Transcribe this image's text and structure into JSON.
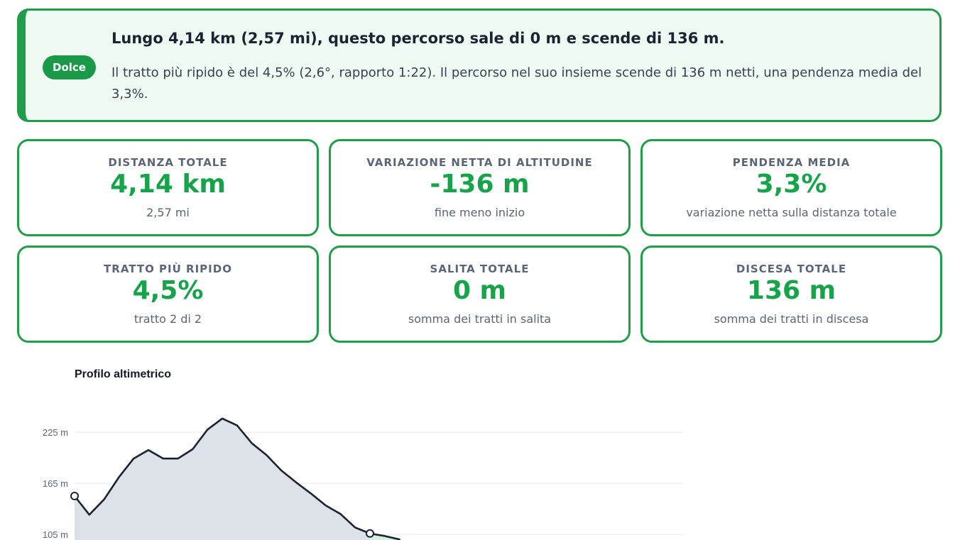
{
  "summary": {
    "badge": "Dolce",
    "title": "Lungo 4,14 km (2,57 mi), questo percorso sale di 0 m e scende di 136 m.",
    "text": "Il tratto più ripido è del 4,5% (2,6°, rapporto 1:22). Il percorso nel suo insieme scende di 136 m netti, una pendenza media del 3,3%.",
    "accent_color": "#1f9d4a",
    "background_color": "#effbf2"
  },
  "stats": [
    {
      "label": "DISTANZA TOTALE",
      "value": "4,14 km",
      "sub": "2,57 mi"
    },
    {
      "label": "VARIAZIONE NETTA DI ALTITUDINE",
      "value": "-136 m",
      "sub": "fine meno inizio"
    },
    {
      "label": "PENDENZA MEDIA",
      "value": "3,3%",
      "sub": "variazione netta sulla distanza totale"
    },
    {
      "label": "TRATTO PIÙ RIPIDO",
      "value": "4,5%",
      "sub": "tratto 2 di 2"
    },
    {
      "label": "SALITA TOTALE",
      "value": "0 m",
      "sub": "somma dei tratti in salita"
    },
    {
      "label": "DISCESA TOTALE",
      "value": "136 m",
      "sub": "somma dei tratti in discesa"
    }
  ],
  "value_color": "#17a34a",
  "chart_title": "Profilo altimetrico",
  "chart_data": {
    "type": "area",
    "title": "Profilo altimetrico",
    "xlabel": "",
    "ylabel": "",
    "y_ticks": [
      "225 m",
      "165 m",
      "105 m"
    ],
    "y_tick_values": [
      225,
      165,
      105
    ],
    "ylim": [
      105,
      245
    ],
    "grid": true,
    "x_km": [
      0.0,
      0.1,
      0.2,
      0.3,
      0.4,
      0.5,
      0.6,
      0.7,
      0.8,
      0.9,
      1.0,
      1.1,
      1.2,
      1.3,
      1.4,
      1.5,
      1.6,
      1.7,
      1.8,
      1.9,
      2.0,
      2.1,
      2.2
    ],
    "elevation_m": [
      150,
      128,
      146,
      172,
      194,
      204,
      194,
      194,
      205,
      228,
      241,
      233,
      212,
      198,
      180,
      166,
      153,
      139,
      129,
      113,
      106,
      103,
      99
    ],
    "segment_markers_km": [
      0.0,
      2.0
    ],
    "series": [
      {
        "values_from": "elevation_m",
        "fill_color": "#dde1e8",
        "line_color": "#1b2231"
      }
    ],
    "steepest_segment_fill_color": "#d3f1dc"
  }
}
